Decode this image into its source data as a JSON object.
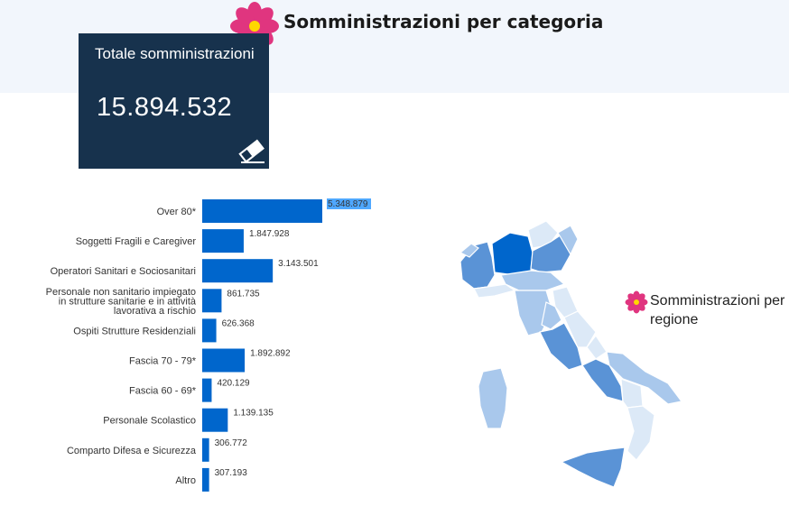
{
  "header": {
    "title": "Somministrazioni per categoria"
  },
  "total_card": {
    "label": "Totale somministrazioni",
    "value": "15.894.532"
  },
  "region": {
    "label": "Somministrazioni per regione"
  },
  "colors": {
    "bar": "#0066cc",
    "card_bg": "#17324d",
    "header_bg": "#f2f6fc",
    "flower_petal": "#e0357f",
    "flower_center": "#ffd700",
    "map_dark": "#0066cc",
    "map_mid": "#5a93d6",
    "map_light": "#a9c8ec",
    "map_pale": "#dce9f7"
  },
  "icons": {
    "header": "flower-icon",
    "card": "eraser-icon",
    "region": "flower-icon"
  },
  "chart_data": {
    "type": "bar",
    "orientation": "horizontal",
    "title": "",
    "xlabel": "",
    "ylabel": "",
    "xlim": [
      0,
      5348879
    ],
    "categories": [
      [
        "Over 80*"
      ],
      [
        "Soggetti Fragili e Caregiver"
      ],
      [
        "Operatori Sanitari e Sociosanitari"
      ],
      [
        "Personale non sanitario impiegato",
        "in strutture sanitarie e in attività",
        "lavorativa a rischio"
      ],
      [
        "Ospiti Strutture Residenziali"
      ],
      [
        "Fascia 70 - 79*"
      ],
      [
        "Fascia 60 - 69*"
      ],
      [
        "Personale Scolastico"
      ],
      [
        "Comparto Difesa e Sicurezza"
      ],
      [
        "Altro"
      ]
    ],
    "values": [
      5348879,
      1847928,
      3143501,
      861735,
      626368,
      1892892,
      420129,
      1139135,
      306772,
      307193
    ],
    "value_labels": [
      "5.348.879",
      "1.847.928",
      "3.143.501",
      "861.735",
      "626.368",
      "1.892.892",
      "420.129",
      "1.139.135",
      "306.772",
      "307.193"
    ],
    "highlighted_index": 0
  }
}
